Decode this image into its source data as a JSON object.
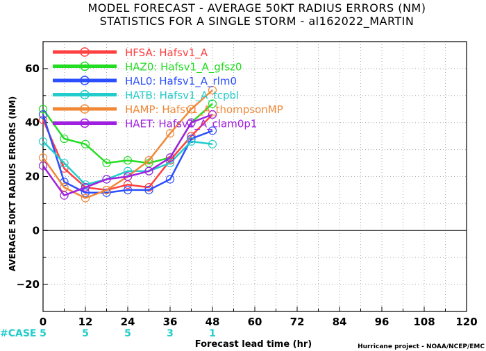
{
  "chart_data": {
    "type": "line",
    "title": "MODEL FORECAST - AVERAGE 50KT RADIUS ERRORS (NM)",
    "subtitle": "STATISTICS FOR A SINGLE STORM - al162022_MARTIN",
    "xlabel": "Forecast lead time (hr)",
    "ylabel": "AVERAGE 50KT RADIUS ERRORS (NM)",
    "xlim": [
      0,
      120
    ],
    "ylim": [
      -30,
      70
    ],
    "x_ticks": [
      0,
      12,
      24,
      36,
      48,
      60,
      72,
      84,
      96,
      108,
      120
    ],
    "y_ticks": [
      -20,
      0,
      20,
      40,
      60
    ],
    "grid": true,
    "legend_position": "top-left",
    "case_label": "#CASE",
    "case_counts": [
      {
        "x": 0,
        "n": "5"
      },
      {
        "x": 12,
        "n": "5"
      },
      {
        "x": 24,
        "n": "5"
      },
      {
        "x": 36,
        "n": "3"
      },
      {
        "x": 48,
        "n": "1"
      }
    ],
    "footer": "Hurricane project - NOAA/NCEP/EMC",
    "series": [
      {
        "name": "HFSA: Hafsv1_A",
        "color": "#ff4040",
        "x": [
          0,
          6,
          12,
          18,
          24,
          30,
          36,
          42,
          48
        ],
        "y": [
          41,
          23,
          16,
          15,
          17,
          16,
          26,
          35,
          43
        ]
      },
      {
        "name": "HAZ0: Hafsv1_A_gfsz0",
        "color": "#22dd22",
        "x": [
          0,
          6,
          12,
          18,
          24,
          30,
          36,
          42,
          48
        ],
        "y": [
          45,
          34,
          32,
          25,
          26,
          25,
          27,
          40,
          47
        ]
      },
      {
        "name": "HAL0: Hafsv1_A_rlm0",
        "color": "#2b4fff",
        "x": [
          0,
          6,
          12,
          18,
          24,
          30,
          36,
          42,
          48
        ],
        "y": [
          43,
          18,
          14,
          14,
          15,
          15,
          19,
          34,
          37
        ]
      },
      {
        "name": "HATB: Hafsv1_A_tcpbl",
        "color": "#22cccc",
        "x": [
          0,
          6,
          12,
          18,
          24,
          30,
          36,
          42,
          48
        ],
        "y": [
          33,
          25,
          17,
          19,
          22,
          22,
          25,
          33,
          32
        ]
      },
      {
        "name": "HAMP: Hafsv1_A_thompsonMP",
        "color": "#f08838",
        "x": [
          0,
          6,
          12,
          18,
          24,
          30,
          36,
          42,
          48
        ],
        "y": [
          27,
          16,
          12,
          15,
          20,
          26,
          36,
          45,
          52
        ]
      },
      {
        "name": "HAET: Hafsv1_A_clam0p1",
        "color": "#a020e0",
        "x": [
          0,
          6,
          12,
          18,
          24,
          30,
          36,
          42,
          48
        ],
        "y": [
          24,
          13,
          16,
          19,
          20,
          22,
          27,
          40,
          43
        ]
      }
    ]
  }
}
